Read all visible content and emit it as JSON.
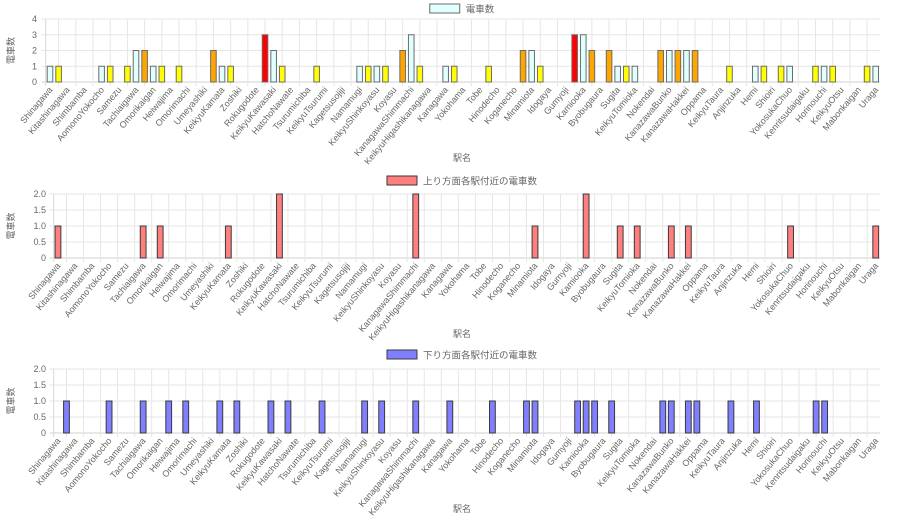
{
  "stations": [
    "Shinagawa",
    "Kitashinagawa",
    "Shimbamba",
    "AomonoYokocho",
    "Samezu",
    "Tachiaigawa",
    "Omorikaigan",
    "Heiwajima",
    "Omorimachi",
    "Umeyashiki",
    "KeikyuKamata",
    "Zoshiki",
    "Rokugodote",
    "KeikyuKawasaki",
    "HatchoNawate",
    "Tsurumichiba",
    "KeikyuTsurumi",
    "Kagetsusojiji",
    "Namamugi",
    "KeikyuShinkoyasu",
    "Koyasu",
    "KanagawaShimmachi",
    "KeikyuHigashikanagawa",
    "Kanagawa",
    "Yokohama",
    "Tobe",
    "Hinodecho",
    "Koganecho",
    "Minamiota",
    "Idogaya",
    "Gumyoji",
    "Kamiooka",
    "Byobugaura",
    "Sugita",
    "KeikyuTomioka",
    "Nokendai",
    "KanazawaBunko",
    "KanazawaHakkei",
    "Oppama",
    "KeikyuTaura",
    "Anjinzuka",
    "Hemi",
    "Shioiri",
    "YokosukaChuo",
    "Kenritsudaigaku",
    "Horinouchi",
    "KeikyuOtsu",
    "Mabonkaigan",
    "Uraga"
  ],
  "colors": {
    "station": "#E0FFFF",
    "between_1": "#FFFF00",
    "between_2": "#FFA500",
    "between_3": "#FF0000",
    "up": "#FF7F7F",
    "down": "#7F7FFF",
    "border": "#6b6b6b",
    "grid": "#e6e6e6",
    "text": "#666666"
  },
  "chart_data": [
    {
      "type": "bar",
      "title": "",
      "legend": "電車数",
      "legend_position": "top",
      "xlabel": "駅名",
      "ylabel": "電車数",
      "ylim": [
        0,
        4
      ],
      "yticks": [
        "0",
        "1",
        "2",
        "3",
        "4"
      ],
      "grid": true,
      "note": "97 categories: each station followed by the segment to the next station; only station names are labeled",
      "values": {
        "0": 1,
        "1": 1,
        "6": 1,
        "7": 1,
        "9": 1,
        "10": 2,
        "11": 2,
        "12": 1,
        "13": 1,
        "15": 1,
        "19": 2,
        "20": 1,
        "21": 1,
        "25": 3,
        "26": 2,
        "27": 1,
        "31": 1,
        "36": 1,
        "37": 1,
        "38": 1,
        "39": 1,
        "41": 2,
        "42": 3,
        "43": 1,
        "46": 1,
        "47": 1,
        "51": 1,
        "55": 2,
        "56": 2,
        "57": 1,
        "61": 3,
        "62": 3,
        "63": 2,
        "65": 2,
        "66": 1,
        "67": 1,
        "68": 1,
        "71": 2,
        "72": 2,
        "73": 2,
        "74": 2,
        "75": 2,
        "79": 1,
        "82": 1,
        "83": 1,
        "85": 1,
        "86": 1,
        "89": 1,
        "90": 1,
        "91": 1,
        "95": 1,
        "96": 1
      }
    },
    {
      "type": "bar",
      "title": "",
      "legend": "上り方面各駅付近の電車数",
      "legend_position": "top",
      "xlabel": "駅名",
      "ylabel": "電車数",
      "ylim": [
        0,
        2
      ],
      "yticks": [
        "0",
        "0.5",
        "1.0",
        "1.5",
        "2.0"
      ],
      "grid": true,
      "values": {
        "0": 1,
        "10": 1,
        "12": 1,
        "20": 1,
        "26": 2,
        "42": 2,
        "56": 1,
        "62": 2,
        "66": 1,
        "68": 1,
        "72": 1,
        "74": 1,
        "86": 1,
        "96": 1
      }
    },
    {
      "type": "bar",
      "title": "",
      "legend": "下り方面各駅付近の電車数",
      "legend_position": "top",
      "xlabel": "駅名",
      "ylabel": "電車数",
      "ylim": [
        0,
        2
      ],
      "yticks": [
        "0",
        "0.5",
        "1.0",
        "1.5",
        "2.0"
      ],
      "grid": true,
      "values": {
        "1": 1,
        "6": 1,
        "10": 1,
        "13": 1,
        "15": 1,
        "19": 1,
        "21": 1,
        "25": 1,
        "27": 1,
        "31": 1,
        "36": 1,
        "38": 1,
        "42": 1,
        "46": 1,
        "51": 1,
        "55": 1,
        "56": 1,
        "61": 1,
        "62": 1,
        "63": 1,
        "65": 1,
        "71": 1,
        "72": 1,
        "74": 1,
        "75": 1,
        "79": 1,
        "82": 1,
        "89": 1,
        "90": 1
      }
    }
  ]
}
